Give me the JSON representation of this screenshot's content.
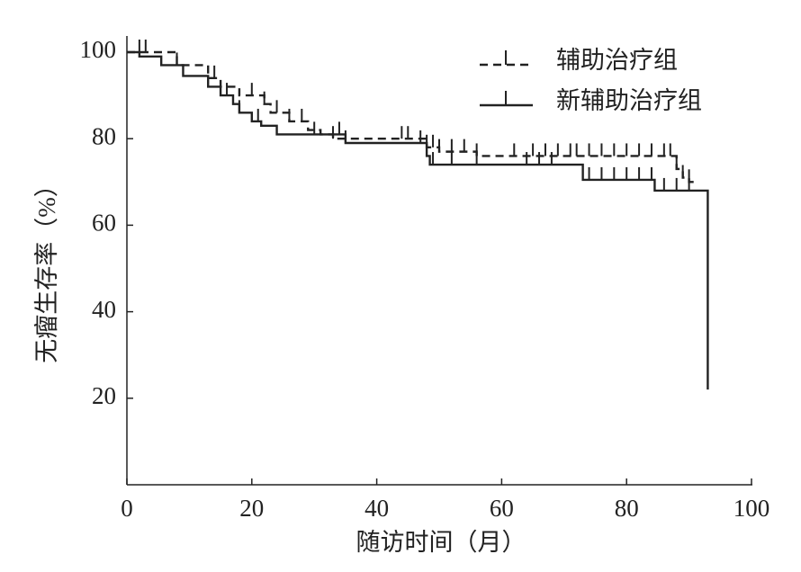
{
  "chart_data": {
    "type": "line",
    "step": "post",
    "xlabel": "随访时间（月）",
    "ylabel": "无瘤生存率（%）",
    "xlim": [
      0,
      100
    ],
    "ylim": [
      0,
      100
    ],
    "xticks": [
      0,
      20,
      40,
      60,
      80,
      100
    ],
    "yticks": [
      20,
      40,
      60,
      80,
      100
    ],
    "series": [
      {
        "name": "辅助治疗组",
        "color": "#222222",
        "dash": "dashed",
        "x": [
          0,
          8,
          13,
          15,
          18,
          22,
          23,
          26,
          29,
          31,
          33,
          48,
          50,
          56,
          88,
          89,
          90,
          91
        ],
        "values": [
          100,
          97,
          94,
          92,
          90,
          88,
          86,
          84,
          82,
          81,
          80,
          78,
          77,
          76,
          73,
          71,
          70,
          70
        ],
        "censor_x": [
          2,
          3,
          8,
          14,
          20,
          22,
          24,
          26,
          28,
          33,
          44,
          45,
          48,
          49,
          50,
          52,
          54,
          56,
          62,
          65,
          67,
          69,
          71,
          72,
          74,
          76,
          78,
          80,
          82,
          84,
          86,
          87,
          88,
          89,
          90
        ]
      },
      {
        "name": "新辅助治疗组",
        "color": "#222222",
        "dash": "solid",
        "x": [
          0,
          2,
          5.5,
          9,
          13,
          15,
          17,
          18,
          20,
          21.5,
          24,
          35,
          48,
          48.5,
          73,
          84.5,
          93
        ],
        "values": [
          100,
          99,
          97,
          94.5,
          92,
          90,
          88,
          86,
          84,
          83,
          81,
          79,
          76,
          74,
          70.5,
          68,
          22
        ],
        "censor_x": [
          16,
          18,
          21,
          30,
          34,
          35,
          47,
          49,
          52,
          56,
          64,
          66,
          68,
          74,
          76,
          78,
          80,
          82,
          84,
          86,
          88,
          90
        ]
      }
    ]
  }
}
